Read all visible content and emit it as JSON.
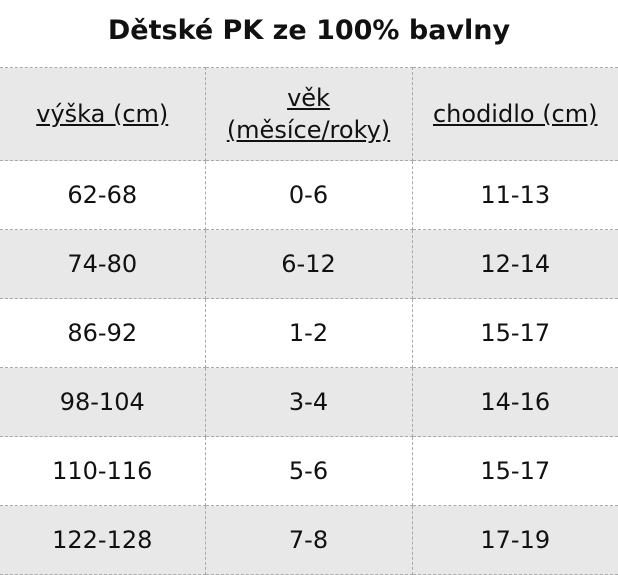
{
  "title": "Dětské PK ze 100% bavlny",
  "table": {
    "header": [
      "výška (cm)",
      "věk (měsíce/roky)",
      "chodidlo (cm)"
    ],
    "rows": [
      [
        "62-68",
        "0-6",
        "11-13"
      ],
      [
        "74-80",
        "6-12",
        "12-14"
      ],
      [
        "86-92",
        "1-2",
        "15-17"
      ],
      [
        "98-104",
        "3-4",
        "14-16"
      ],
      [
        "110-116",
        "5-6",
        "15-17"
      ],
      [
        "122-128",
        "7-8",
        "17-19"
      ]
    ]
  }
}
